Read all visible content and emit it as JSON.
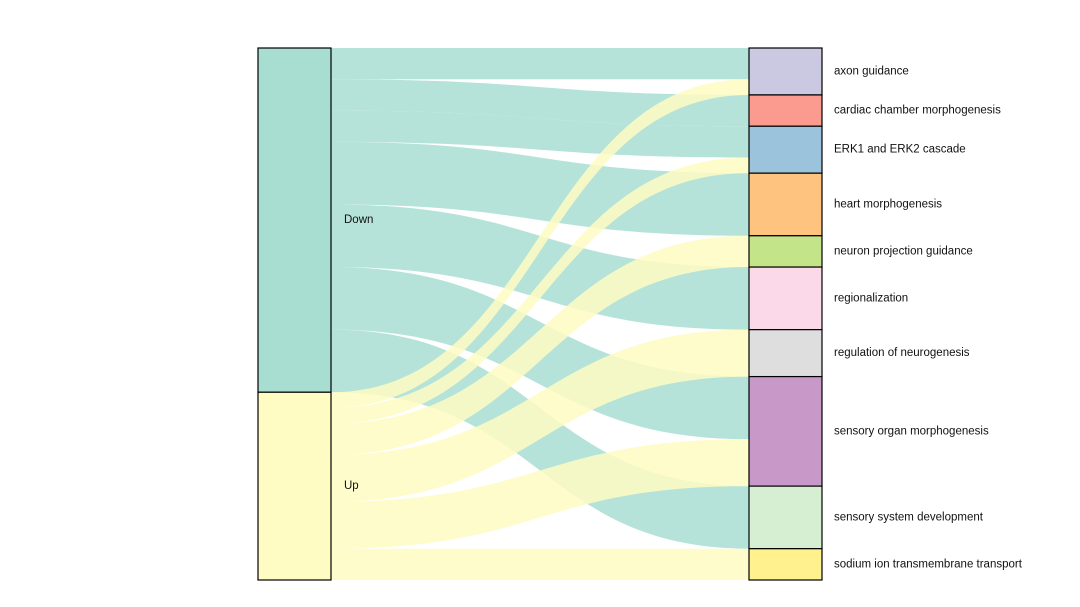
{
  "chart_data": {
    "type": "sankey",
    "sources": [
      {
        "name": "Down",
        "color": "#a8ded2"
      },
      {
        "name": "Up",
        "color": "#fefcc2"
      }
    ],
    "targets": [
      {
        "name": "axon guidance",
        "color": "#cbc9e2"
      },
      {
        "name": "cardiac chamber morphogenesis",
        "color": "#fb9a8f"
      },
      {
        "name": "ERK1 and ERK2 cascade",
        "color": "#9cc3dc"
      },
      {
        "name": "heart morphogenesis",
        "color": "#fdc37f"
      },
      {
        "name": "neuron projection guidance",
        "color": "#c4e48a"
      },
      {
        "name": "regionalization",
        "color": "#fcd9e8"
      },
      {
        "name": "regulation of neurogenesis",
        "color": "#dedede"
      },
      {
        "name": "sensory organ morphogenesis",
        "color": "#c898c8"
      },
      {
        "name": "sensory system development",
        "color": "#d6efd3"
      },
      {
        "name": "sodium ion transmembrane transport",
        "color": "#fff18e"
      }
    ],
    "flows": [
      {
        "source": "Down",
        "target": "axon guidance",
        "value": 2
      },
      {
        "source": "Down",
        "target": "cardiac chamber morphogenesis",
        "value": 2
      },
      {
        "source": "Down",
        "target": "ERK1 and ERK2 cascade",
        "value": 2
      },
      {
        "source": "Down",
        "target": "heart morphogenesis",
        "value": 4
      },
      {
        "source": "Down",
        "target": "regionalization",
        "value": 4
      },
      {
        "source": "Down",
        "target": "sensory organ morphogenesis",
        "value": 4
      },
      {
        "source": "Down",
        "target": "sensory system development",
        "value": 4
      },
      {
        "source": "Up",
        "target": "axon guidance",
        "value": 1
      },
      {
        "source": "Up",
        "target": "ERK1 and ERK2 cascade",
        "value": 1
      },
      {
        "source": "Up",
        "target": "neuron projection guidance",
        "value": 2
      },
      {
        "source": "Up",
        "target": "regulation of neurogenesis",
        "value": 3
      },
      {
        "source": "Up",
        "target": "sensory organ morphogenesis",
        "value": 3
      },
      {
        "source": "Up",
        "target": "sodium ion transmembrane transport",
        "value": 2
      }
    ]
  }
}
